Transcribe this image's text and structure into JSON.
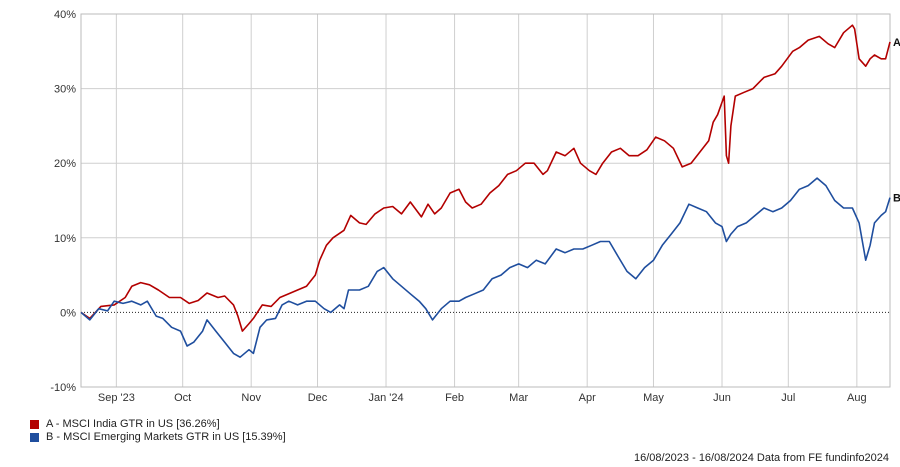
{
  "chart_data": {
    "type": "line",
    "xlabel": "",
    "ylabel": "",
    "ylim": [
      -10,
      40
    ],
    "yticks": [
      "-10%",
      "0%",
      "10%",
      "20%",
      "30%",
      "40%"
    ],
    "yticks_values": [
      -10,
      0,
      10,
      20,
      30,
      40
    ],
    "xticks": [
      "Sep '23",
      "Oct",
      "Nov",
      "Dec",
      "Jan '24",
      "Feb",
      "Mar",
      "Apr",
      "May",
      "Jun",
      "Jul",
      "Aug"
    ],
    "xticks_dates": [
      "2023-09-01",
      "2023-10-01",
      "2023-11-01",
      "2023-12-01",
      "2024-01-01",
      "2024-02-01",
      "2024-03-01",
      "2024-04-01",
      "2024-05-01",
      "2024-06-01",
      "2024-07-01",
      "2024-08-01"
    ],
    "x_range": [
      "2023-08-16",
      "2024-08-16"
    ],
    "grid": true,
    "zero_line": "dotted",
    "series": [
      {
        "name": "A - MSCI India GTR in US [36.26%]",
        "end_label": "A",
        "color": "#b30000",
        "points": [
          [
            "2023-08-16",
            0
          ],
          [
            "2023-08-20",
            -0.8
          ],
          [
            "2023-08-25",
            0.8
          ],
          [
            "2023-08-31",
            1.0
          ],
          [
            "2023-09-05",
            2.0
          ],
          [
            "2023-09-08",
            3.5
          ],
          [
            "2023-09-12",
            4.0
          ],
          [
            "2023-09-16",
            3.7
          ],
          [
            "2023-09-20",
            3.0
          ],
          [
            "2023-09-25",
            2.0
          ],
          [
            "2023-09-30",
            2.0
          ],
          [
            "2023-10-04",
            1.2
          ],
          [
            "2023-10-08",
            1.6
          ],
          [
            "2023-10-12",
            2.6
          ],
          [
            "2023-10-17",
            2.0
          ],
          [
            "2023-10-20",
            2.2
          ],
          [
            "2023-10-24",
            1.0
          ],
          [
            "2023-10-26",
            -0.5
          ],
          [
            "2023-10-28",
            -2.5
          ],
          [
            "2023-10-31",
            -1.5
          ],
          [
            "2023-11-02",
            -0.8
          ],
          [
            "2023-11-06",
            1.0
          ],
          [
            "2023-11-10",
            0.8
          ],
          [
            "2023-11-14",
            2.0
          ],
          [
            "2023-11-18",
            2.5
          ],
          [
            "2023-11-22",
            3.0
          ],
          [
            "2023-11-26",
            3.5
          ],
          [
            "2023-11-30",
            5.0
          ],
          [
            "2023-12-02",
            7.0
          ],
          [
            "2023-12-05",
            9.0
          ],
          [
            "2023-12-08",
            10.0
          ],
          [
            "2023-12-13",
            11.0
          ],
          [
            "2023-12-16",
            13.0
          ],
          [
            "2023-12-20",
            12.0
          ],
          [
            "2023-12-23",
            11.8
          ],
          [
            "2023-12-27",
            13.2
          ],
          [
            "2023-12-31",
            14.0
          ],
          [
            "2024-01-04",
            14.2
          ],
          [
            "2024-01-08",
            13.2
          ],
          [
            "2024-01-12",
            14.8
          ],
          [
            "2024-01-17",
            12.8
          ],
          [
            "2024-01-20",
            14.5
          ],
          [
            "2024-01-23",
            13.2
          ],
          [
            "2024-01-26",
            14.0
          ],
          [
            "2024-01-30",
            16.0
          ],
          [
            "2024-02-03",
            16.5
          ],
          [
            "2024-02-06",
            14.8
          ],
          [
            "2024-02-09",
            14.0
          ],
          [
            "2024-02-13",
            14.5
          ],
          [
            "2024-02-17",
            16.0
          ],
          [
            "2024-02-21",
            17.0
          ],
          [
            "2024-02-25",
            18.5
          ],
          [
            "2024-02-29",
            19.0
          ],
          [
            "2024-03-04",
            20.0
          ],
          [
            "2024-03-08",
            20.0
          ],
          [
            "2024-03-12",
            18.5
          ],
          [
            "2024-03-14",
            19.0
          ],
          [
            "2024-03-18",
            21.5
          ],
          [
            "2024-03-22",
            21.0
          ],
          [
            "2024-03-26",
            22.0
          ],
          [
            "2024-03-29",
            20.0
          ],
          [
            "2024-04-02",
            19.0
          ],
          [
            "2024-04-05",
            18.5
          ],
          [
            "2024-04-08",
            20.0
          ],
          [
            "2024-04-12",
            21.5
          ],
          [
            "2024-04-16",
            22.0
          ],
          [
            "2024-04-20",
            21.0
          ],
          [
            "2024-04-24",
            21.0
          ],
          [
            "2024-04-28",
            21.8
          ],
          [
            "2024-05-02",
            23.5
          ],
          [
            "2024-05-06",
            23.0
          ],
          [
            "2024-05-10",
            22.0
          ],
          [
            "2024-05-14",
            19.5
          ],
          [
            "2024-05-18",
            20.0
          ],
          [
            "2024-05-22",
            21.5
          ],
          [
            "2024-05-26",
            23.0
          ],
          [
            "2024-05-28",
            25.5
          ],
          [
            "2024-05-30",
            26.5
          ],
          [
            "2024-06-02",
            29.0
          ],
          [
            "2024-06-03",
            21.0
          ],
          [
            "2024-06-04",
            20.0
          ],
          [
            "2024-06-05",
            25.0
          ],
          [
            "2024-06-07",
            29.0
          ],
          [
            "2024-06-11",
            29.5
          ],
          [
            "2024-06-15",
            30.0
          ],
          [
            "2024-06-20",
            31.5
          ],
          [
            "2024-06-25",
            32.0
          ],
          [
            "2024-06-28",
            33.0
          ],
          [
            "2024-07-03",
            35.0
          ],
          [
            "2024-07-06",
            35.5
          ],
          [
            "2024-07-10",
            36.5
          ],
          [
            "2024-07-15",
            37.0
          ],
          [
            "2024-07-19",
            36.0
          ],
          [
            "2024-07-22",
            35.5
          ],
          [
            "2024-07-26",
            37.5
          ],
          [
            "2024-07-30",
            38.5
          ],
          [
            "2024-07-31",
            38.0
          ],
          [
            "2024-08-02",
            34.0
          ],
          [
            "2024-08-05",
            33.0
          ],
          [
            "2024-08-07",
            34.0
          ],
          [
            "2024-08-09",
            34.5
          ],
          [
            "2024-08-12",
            34.0
          ],
          [
            "2024-08-14",
            34.0
          ],
          [
            "2024-08-16",
            36.26
          ]
        ]
      },
      {
        "name": "B - MSCI Emerging Markets GTR in US [15.39%]",
        "end_label": "B",
        "color": "#1f4e9e",
        "points": [
          [
            "2023-08-16",
            0
          ],
          [
            "2023-08-20",
            -1.0
          ],
          [
            "2023-08-24",
            0.5
          ],
          [
            "2023-08-28",
            0.2
          ],
          [
            "2023-08-31",
            1.5
          ],
          [
            "2023-09-04",
            1.2
          ],
          [
            "2023-09-08",
            1.5
          ],
          [
            "2023-09-12",
            1.0
          ],
          [
            "2023-09-15",
            1.5
          ],
          [
            "2023-09-19",
            -0.5
          ],
          [
            "2023-09-22",
            -0.8
          ],
          [
            "2023-09-26",
            -2.0
          ],
          [
            "2023-09-30",
            -2.5
          ],
          [
            "2023-10-03",
            -4.5
          ],
          [
            "2023-10-06",
            -4.0
          ],
          [
            "2023-10-10",
            -2.5
          ],
          [
            "2023-10-12",
            -1.0
          ],
          [
            "2023-10-16",
            -2.5
          ],
          [
            "2023-10-20",
            -4.0
          ],
          [
            "2023-10-24",
            -5.5
          ],
          [
            "2023-10-27",
            -6.0
          ],
          [
            "2023-10-31",
            -5.0
          ],
          [
            "2023-11-02",
            -5.5
          ],
          [
            "2023-11-05",
            -2.0
          ],
          [
            "2023-11-08",
            -1.0
          ],
          [
            "2023-11-12",
            -0.8
          ],
          [
            "2023-11-15",
            1.0
          ],
          [
            "2023-11-18",
            1.5
          ],
          [
            "2023-11-22",
            1.0
          ],
          [
            "2023-11-26",
            1.5
          ],
          [
            "2023-11-30",
            1.5
          ],
          [
            "2023-12-04",
            0.5
          ],
          [
            "2023-12-07",
            0.0
          ],
          [
            "2023-12-11",
            1.0
          ],
          [
            "2023-12-13",
            0.5
          ],
          [
            "2023-12-15",
            3.0
          ],
          [
            "2023-12-20",
            3.0
          ],
          [
            "2023-12-24",
            3.5
          ],
          [
            "2023-12-28",
            5.5
          ],
          [
            "2023-12-31",
            6.0
          ],
          [
            "2024-01-04",
            4.5
          ],
          [
            "2024-01-08",
            3.5
          ],
          [
            "2024-01-12",
            2.5
          ],
          [
            "2024-01-16",
            1.5
          ],
          [
            "2024-01-19",
            0.5
          ],
          [
            "2024-01-22",
            -1.0
          ],
          [
            "2024-01-26",
            0.5
          ],
          [
            "2024-01-30",
            1.5
          ],
          [
            "2024-02-03",
            1.5
          ],
          [
            "2024-02-06",
            2.0
          ],
          [
            "2024-02-10",
            2.5
          ],
          [
            "2024-02-14",
            3.0
          ],
          [
            "2024-02-18",
            4.5
          ],
          [
            "2024-02-22",
            5.0
          ],
          [
            "2024-02-26",
            6.0
          ],
          [
            "2024-03-01",
            6.5
          ],
          [
            "2024-03-05",
            6.0
          ],
          [
            "2024-03-09",
            7.0
          ],
          [
            "2024-03-13",
            6.5
          ],
          [
            "2024-03-18",
            8.5
          ],
          [
            "2024-03-22",
            8.0
          ],
          [
            "2024-03-26",
            8.5
          ],
          [
            "2024-03-30",
            8.5
          ],
          [
            "2024-04-03",
            9.0
          ],
          [
            "2024-04-07",
            9.5
          ],
          [
            "2024-04-11",
            9.5
          ],
          [
            "2024-04-15",
            7.5
          ],
          [
            "2024-04-19",
            5.5
          ],
          [
            "2024-04-23",
            4.5
          ],
          [
            "2024-04-27",
            6.0
          ],
          [
            "2024-05-01",
            7.0
          ],
          [
            "2024-05-05",
            9.0
          ],
          [
            "2024-05-09",
            10.5
          ],
          [
            "2024-05-13",
            12.0
          ],
          [
            "2024-05-17",
            14.5
          ],
          [
            "2024-05-21",
            14.0
          ],
          [
            "2024-05-25",
            13.5
          ],
          [
            "2024-05-29",
            12.0
          ],
          [
            "2024-06-01",
            11.5
          ],
          [
            "2024-06-03",
            9.5
          ],
          [
            "2024-06-05",
            10.5
          ],
          [
            "2024-06-08",
            11.5
          ],
          [
            "2024-06-12",
            12.0
          ],
          [
            "2024-06-16",
            13.0
          ],
          [
            "2024-06-20",
            14.0
          ],
          [
            "2024-06-24",
            13.5
          ],
          [
            "2024-06-28",
            14.0
          ],
          [
            "2024-07-02",
            15.0
          ],
          [
            "2024-07-06",
            16.5
          ],
          [
            "2024-07-10",
            17.0
          ],
          [
            "2024-07-14",
            18.0
          ],
          [
            "2024-07-18",
            17.0
          ],
          [
            "2024-07-22",
            15.0
          ],
          [
            "2024-07-26",
            14.0
          ],
          [
            "2024-07-30",
            14.0
          ],
          [
            "2024-08-02",
            12.0
          ],
          [
            "2024-08-05",
            7.0
          ],
          [
            "2024-08-07",
            9.0
          ],
          [
            "2024-08-09",
            12.0
          ],
          [
            "2024-08-12",
            13.0
          ],
          [
            "2024-08-14",
            13.5
          ],
          [
            "2024-08-16",
            15.39
          ]
        ]
      }
    ]
  },
  "legend": {
    "a": {
      "label": "A - MSCI India GTR in US [36.26%]",
      "color": "#b30000"
    },
    "b": {
      "label": "B - MSCI Emerging Markets GTR in US [15.39%]",
      "color": "#1f4e9e"
    }
  },
  "footer": "16/08/2023 - 16/08/2024 Data from FE fundinfo2024"
}
